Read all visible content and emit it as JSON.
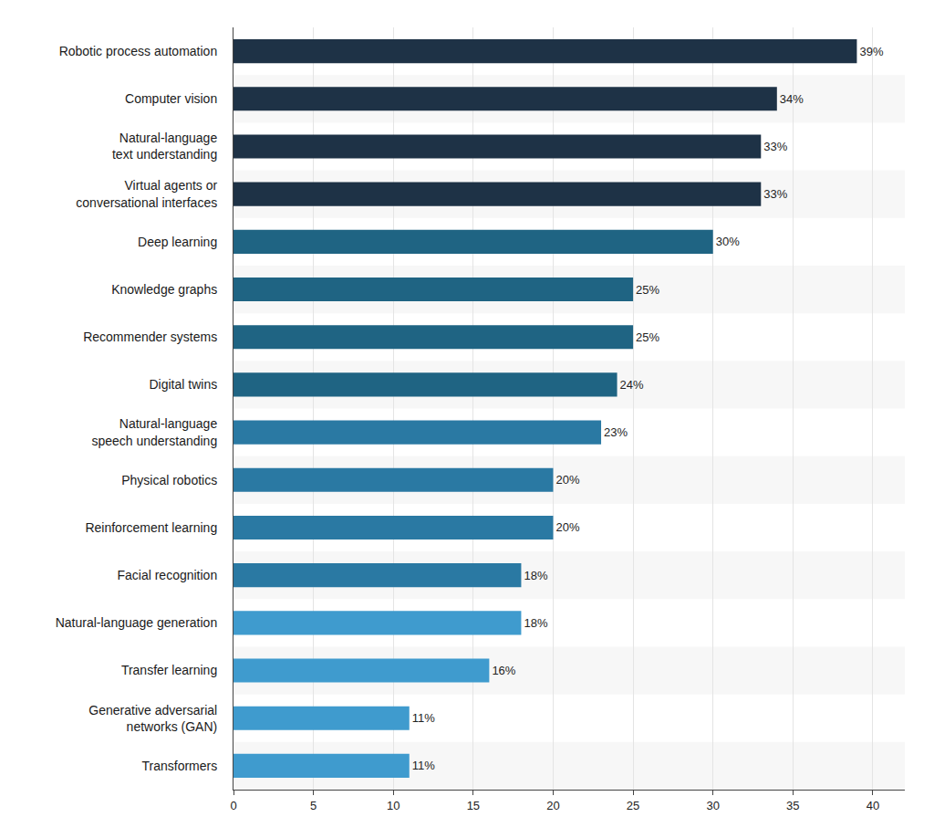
{
  "chart_data": {
    "type": "bar",
    "orientation": "horizontal",
    "categories": [
      "Robotic process automation",
      "Computer vision",
      "Natural-language text understanding",
      "Virtual agents or conversational interfaces",
      "Deep learning",
      "Knowledge graphs",
      "Recommender systems",
      "Digital twins",
      "Natural-language speech understanding",
      "Physical robotics",
      "Reinforcement learning",
      "Facial recognition",
      "Natural-language generation",
      "Transfer learning",
      "Generative adversarial networks (GAN)",
      "Transformers"
    ],
    "values": [
      39,
      34,
      33,
      33,
      30,
      25,
      25,
      24,
      23,
      20,
      20,
      18,
      18,
      16,
      11,
      11
    ],
    "value_labels": [
      "39%",
      "34%",
      "33%",
      "33%",
      "30%",
      "25%",
      "25%",
      "24%",
      "23%",
      "20%",
      "20%",
      "18%",
      "18%",
      "16%",
      "11%",
      "11%"
    ],
    "colors": [
      "#1e3246",
      "#1e3246",
      "#1e3246",
      "#1e3246",
      "#1f6483",
      "#1f6483",
      "#1f6483",
      "#1f6483",
      "#2a79a3",
      "#2a79a3",
      "#2a79a3",
      "#2a79a3",
      "#3f9bce",
      "#3f9bce",
      "#3f9bce",
      "#3f9bce"
    ],
    "xlim": [
      0,
      42
    ],
    "xticks": [
      0,
      5,
      10,
      15,
      20,
      25,
      30,
      35,
      40
    ],
    "grid": true,
    "data_labels": true
  }
}
